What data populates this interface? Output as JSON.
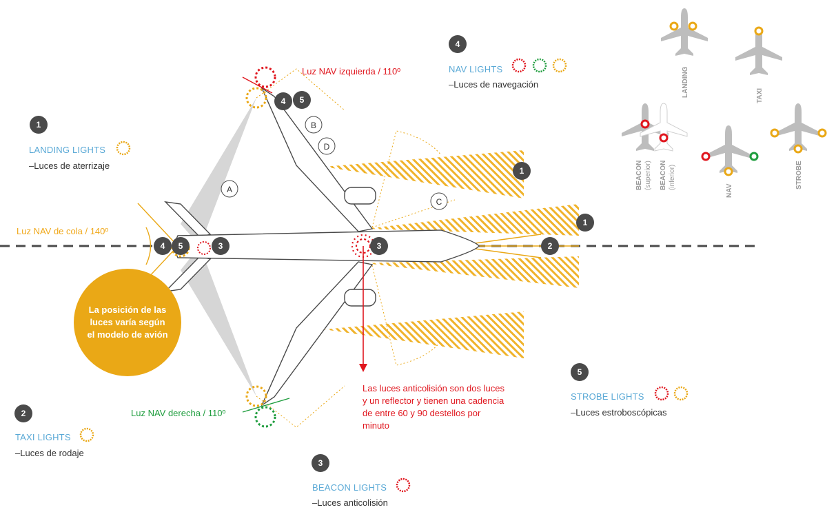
{
  "colors": {
    "orange": "#eaa816",
    "red": "#e0161e",
    "green": "#1f9d3e",
    "blue": "#5aa9d6",
    "badge": "#4a4a4a",
    "gray": "#bdbdbd"
  },
  "legend": [
    {
      "num": "1",
      "title": "LANDING LIGHTS",
      "sub": "–Luces de aterrizaje"
    },
    {
      "num": "2",
      "title": "TAXI LIGHTS",
      "sub": "–Luces de rodaje"
    },
    {
      "num": "3",
      "title": "BEACON LIGHTS",
      "sub": "–Luces anticolisión"
    },
    {
      "num": "4",
      "title": "NAV LIGHTS",
      "sub": "–Luces de navegación"
    },
    {
      "num": "5",
      "title": "STROBE LIGHTS",
      "sub": "–Luces estroboscópicas"
    }
  ],
  "labels": {
    "nav_left": "Luz NAV izquierda / 110º",
    "nav_right": "Luz NAV derecha / 110º",
    "nav_tail": "Luz NAV de cola / 140º",
    "beacon_note": "Las luces anticolisión son dos luces y un reflector y tienen una cadencia de entre 60 y 90 destellos por minuto",
    "bubble": "La posición de las luces varía según el modelo de avión"
  },
  "zones": [
    "A",
    "B",
    "C",
    "D"
  ],
  "mini": {
    "landing": "LANDING",
    "taxi": "TAXI",
    "beacon": "BEACON",
    "beacon_sup": "(superior)",
    "beacon_inf": "(inferior)",
    "nav": "NAV",
    "strobe": "STROBE"
  },
  "markers": {
    "m1a": "1",
    "m1b": "1",
    "m2": "2",
    "m3a": "3",
    "m3b": "3",
    "m4a": "4",
    "m4b": "4",
    "m5a": "5",
    "m5b": "5"
  }
}
